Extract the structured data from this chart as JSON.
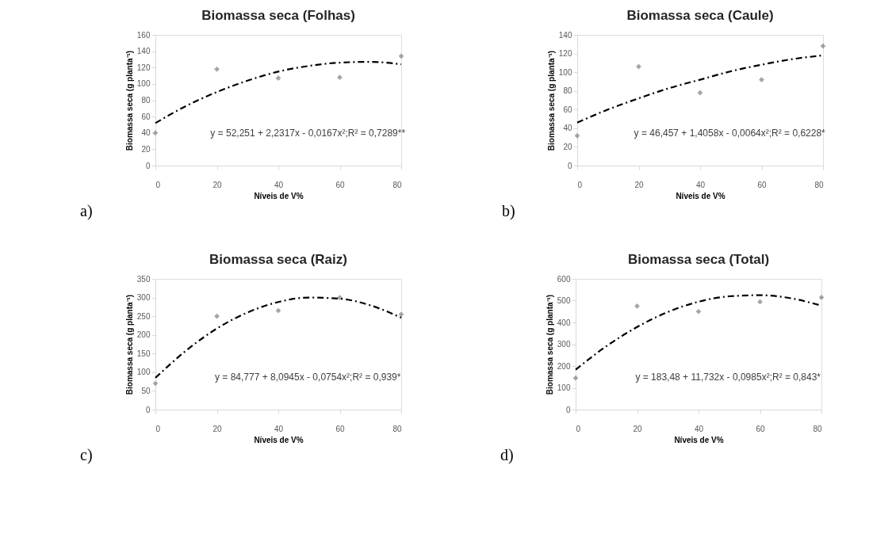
{
  "chart_data": [
    {
      "type": "scatter",
      "title": "Biomassa seca (Folhas)",
      "xlabel": "Níveis de V%",
      "ylabel": "Biomassa seca (g planta⁻¹)",
      "xlim": [
        0,
        80
      ],
      "xticks": [
        0,
        20,
        40,
        60,
        80
      ],
      "ylim": [
        0,
        160
      ],
      "yticks": [
        0,
        20,
        40,
        60,
        80,
        100,
        120,
        140,
        160
      ],
      "grid": false,
      "annotations": [
        "y = 52,251 + 2,2317x - 0,0167x²;R² = 0,7289**",
        "a)"
      ],
      "series": [
        {
          "type": "scatter",
          "color": "#7f7f7f",
          "marker": "diamond",
          "x": [
            0,
            20,
            40,
            60,
            80
          ],
          "values": [
            40,
            118,
            107,
            108,
            134
          ]
        },
        {
          "type": "line",
          "color": "#000000",
          "line_style": "dashed",
          "x": [
            0,
            10,
            20,
            30,
            40,
            50,
            60,
            70,
            80
          ],
          "values": [
            52,
            73,
            90,
            104,
            115,
            122,
            126,
            127,
            124
          ]
        }
      ]
    },
    {
      "type": "scatter",
      "title": "Biomassa seca (Caule)",
      "xlabel": "Níveis de V%",
      "ylabel": "Biomassa seca (g planta⁻¹)",
      "xlim": [
        0,
        80
      ],
      "xticks": [
        0,
        20,
        40,
        60,
        80
      ],
      "ylim": [
        0,
        140
      ],
      "yticks": [
        0,
        20,
        40,
        60,
        80,
        100,
        120,
        140
      ],
      "grid": false,
      "annotations": [
        "y = 46,457 + 1,4058x - 0,0064x²;R² = 0,6228*",
        "b)"
      ],
      "series": [
        {
          "type": "scatter",
          "color": "#7f7f7f",
          "marker": "diamond",
          "x": [
            0,
            20,
            40,
            60,
            80
          ],
          "values": [
            32,
            106,
            78,
            92,
            128
          ]
        },
        {
          "type": "line",
          "color": "#000000",
          "line_style": "dashed",
          "x": [
            0,
            10,
            20,
            30,
            40,
            50,
            60,
            70,
            80
          ],
          "values": [
            46,
            60,
            72,
            83,
            92,
            101,
            108,
            114,
            118
          ]
        }
      ]
    },
    {
      "type": "scatter",
      "title": "Biomassa seca (Raiz)",
      "xlabel": "Níveis de V%",
      "ylabel": "Biomassa seca (g planta⁻¹)",
      "xlim": [
        0,
        80
      ],
      "xticks": [
        0,
        20,
        40,
        60,
        80
      ],
      "ylim": [
        0,
        350
      ],
      "yticks": [
        0,
        50,
        100,
        150,
        200,
        250,
        300,
        350
      ],
      "grid": false,
      "annotations": [
        "y = 84,777 + 8,0945x - 0,0754x²;R² = 0,939*",
        "c)"
      ],
      "series": [
        {
          "type": "scatter",
          "color": "#7f7f7f",
          "marker": "diamond",
          "x": [
            0,
            20,
            40,
            60,
            80
          ],
          "values": [
            70,
            250,
            265,
            300,
            255
          ]
        },
        {
          "type": "line",
          "color": "#000000",
          "line_style": "dashed",
          "x": [
            0,
            10,
            20,
            30,
            40,
            50,
            60,
            70,
            80
          ],
          "values": [
            85,
            158,
            217,
            260,
            288,
            300,
            297,
            279,
            246
          ]
        }
      ]
    },
    {
      "type": "scatter",
      "title": "Biomassa seca (Total)",
      "xlabel": "Níveis de V%",
      "ylabel": "Biomassa seca (g planta⁻¹)",
      "xlim": [
        0,
        80
      ],
      "xticks": [
        0,
        20,
        40,
        60,
        80
      ],
      "ylim": [
        0,
        600
      ],
      "yticks": [
        0,
        100,
        200,
        300,
        400,
        500,
        600
      ],
      "grid": false,
      "annotations": [
        "y = 183,48 + 11,732x - 0,0985x²;R² = 0,843*",
        "d)"
      ],
      "series": [
        {
          "type": "scatter",
          "color": "#7f7f7f",
          "marker": "diamond",
          "x": [
            0,
            20,
            40,
            60,
            80
          ],
          "values": [
            145,
            475,
            450,
            495,
            515
          ]
        },
        {
          "type": "line",
          "color": "#000000",
          "line_style": "dashed",
          "x": [
            0,
            10,
            20,
            30,
            40,
            50,
            60,
            70,
            80
          ],
          "values": [
            183,
            291,
            379,
            448,
            495,
            520,
            525,
            511,
            477
          ]
        }
      ]
    }
  ]
}
